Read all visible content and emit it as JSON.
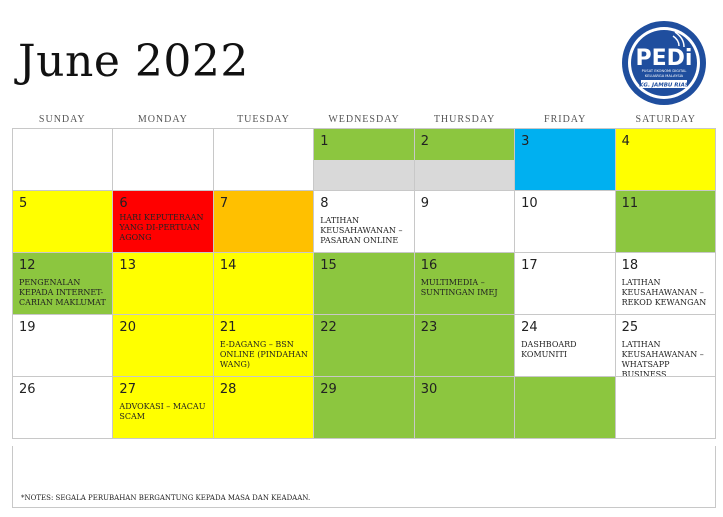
{
  "title": "June 2022",
  "logo": {
    "name": "PEDi",
    "line1": "PUSAT EKONOMI DIGITAL",
    "line2": "KELUARGA MALAYSIA",
    "line3": "KG. JAMBU RIAS",
    "colors": {
      "ring": "#1f4e9e",
      "inner": "#ffffff",
      "band": "#1f4e9e"
    }
  },
  "weekdays": [
    "SUNDAY",
    "MONDAY",
    "TUESDAY",
    "WEDNESDAY",
    "THURSDAY",
    "FRIDAY",
    "SATURDAY"
  ],
  "colors": {
    "green": "#8cc63f",
    "yellow": "#ffff00",
    "blue": "#00b0f0",
    "red": "#ff0000",
    "orange": "#ffc000",
    "white": "#ffffff",
    "grey": "#d9d9d9"
  },
  "cells": [
    {
      "num": "",
      "color": "white",
      "event": ""
    },
    {
      "num": "",
      "color": "white",
      "event": ""
    },
    {
      "num": "",
      "color": "white",
      "event": ""
    },
    {
      "num": "1",
      "color": "green",
      "event": "",
      "grey_band": true
    },
    {
      "num": "2",
      "color": "green",
      "event": "",
      "grey_band": true
    },
    {
      "num": "3",
      "color": "blue",
      "event": ""
    },
    {
      "num": "4",
      "color": "yellow",
      "event": ""
    },
    {
      "num": "5",
      "color": "yellow",
      "event": ""
    },
    {
      "num": "6",
      "color": "red",
      "event": "HARI KEPUTERAAN YANG DI-PERTUAN AGONG"
    },
    {
      "num": "7",
      "color": "orange",
      "event": ""
    },
    {
      "num": "8",
      "color": "white",
      "event": "LATIHAN KEUSAHAWANAN – PASARAN ONLINE"
    },
    {
      "num": "9",
      "color": "white",
      "event": ""
    },
    {
      "num": "10",
      "color": "white",
      "event": ""
    },
    {
      "num": "11",
      "color": "green",
      "event": ""
    },
    {
      "num": "12",
      "color": "green",
      "event": "PENGENALAN KEPADA INTERNET-CARIAN MAKLUMAT"
    },
    {
      "num": "13",
      "color": "yellow",
      "event": ""
    },
    {
      "num": "14",
      "color": "yellow",
      "event": ""
    },
    {
      "num": "15",
      "color": "green",
      "event": ""
    },
    {
      "num": "16",
      "color": "green",
      "event": "MULTIMEDIA – SUNTINGAN IMEJ"
    },
    {
      "num": "17",
      "color": "white",
      "event": ""
    },
    {
      "num": "18",
      "color": "white",
      "event": "LATIHAN KEUSAHAWANAN – REKOD KEWANGAN"
    },
    {
      "num": "19",
      "color": "white",
      "event": ""
    },
    {
      "num": "20",
      "color": "yellow",
      "event": ""
    },
    {
      "num": "21",
      "color": "yellow",
      "event": "E-DAGANG – BSN ONLINE (PINDAHAN WANG)"
    },
    {
      "num": "22",
      "color": "green",
      "event": ""
    },
    {
      "num": "23",
      "color": "green",
      "event": ""
    },
    {
      "num": "24",
      "color": "white",
      "event": "DASHBOARD KOMUNITI"
    },
    {
      "num": "25",
      "color": "white",
      "event": "LATIHAN KEUSAHAWANAN – WHATSAPP BUSINESS"
    },
    {
      "num": "26",
      "color": "white",
      "event": ""
    },
    {
      "num": "27",
      "color": "yellow",
      "event": "ADVOKASI – MACAU SCAM"
    },
    {
      "num": "28",
      "color": "yellow",
      "event": ""
    },
    {
      "num": "29",
      "color": "green",
      "event": ""
    },
    {
      "num": "30",
      "color": "green",
      "event": ""
    },
    {
      "num": "",
      "color": "green",
      "event": ""
    },
    {
      "num": "",
      "color": "white",
      "event": ""
    }
  ],
  "notes": "*NOTES: SEGALA PERUBAHAN BERGANTUNG KEPADA MASA DAN KEADAAN."
}
